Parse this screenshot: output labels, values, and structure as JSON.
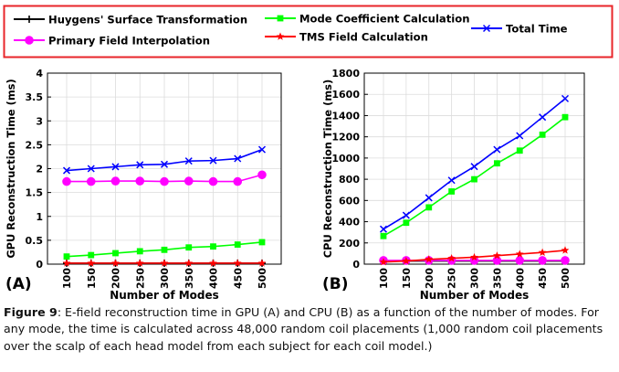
{
  "legend": {
    "entries": [
      {
        "label": "Huygens' Surface Transformation",
        "color": "#000000",
        "marker": "plus"
      },
      {
        "label": "Primary Field Interpolation",
        "color": "#ff00ff",
        "marker": "circle"
      },
      {
        "label": "Mode Coefficient Calculation",
        "color": "#00ff00",
        "marker": "square"
      },
      {
        "label": "TMS Field Calculation",
        "color": "#ff0000",
        "marker": "star"
      },
      {
        "label": "Total Time",
        "color": "#0000ff",
        "marker": "cross"
      }
    ],
    "border_color": "#e8262a",
    "placement": "top"
  },
  "chart_data": [
    {
      "type": "line",
      "panel_label": "(A)",
      "xlabel": "Number of Modes",
      "ylabel": "GPU Reconstruction Time (ms)",
      "categories": [
        "100",
        "150",
        "200",
        "250",
        "300",
        "350",
        "400",
        "450",
        "500"
      ],
      "ylim": [
        0,
        4
      ],
      "yticks": [
        "0",
        "0.5",
        "1",
        "1.5",
        "2",
        "2.5",
        "3",
        "3.5",
        "4"
      ],
      "grid": true,
      "series": [
        {
          "name": "Huygens' Surface Transformation",
          "values": [
            0.02,
            0.02,
            0.02,
            0.02,
            0.02,
            0.02,
            0.02,
            0.02,
            0.02
          ]
        },
        {
          "name": "Primary Field Interpolation",
          "values": [
            1.73,
            1.73,
            1.74,
            1.74,
            1.73,
            1.74,
            1.73,
            1.73,
            1.87
          ]
        },
        {
          "name": "Mode Coefficient Calculation",
          "values": [
            0.16,
            0.19,
            0.23,
            0.27,
            0.3,
            0.35,
            0.37,
            0.41,
            0.46
          ]
        },
        {
          "name": "TMS Field Calculation",
          "values": [
            0.02,
            0.02,
            0.02,
            0.02,
            0.02,
            0.02,
            0.02,
            0.02,
            0.02
          ]
        },
        {
          "name": "Total Time",
          "values": [
            1.96,
            2.0,
            2.04,
            2.08,
            2.09,
            2.16,
            2.17,
            2.21,
            2.4
          ]
        }
      ]
    },
    {
      "type": "line",
      "panel_label": "(B)",
      "xlabel": "Number of Modes",
      "ylabel": "CPU Reconstruction Time (ms)",
      "categories": [
        "100",
        "150",
        "200",
        "250",
        "300",
        "350",
        "400",
        "450",
        "500"
      ],
      "ylim": [
        0,
        1800
      ],
      "yticks": [
        "0",
        "200",
        "400",
        "600",
        "800",
        "1000",
        "1200",
        "1400",
        "1600",
        "1800"
      ],
      "grid": true,
      "series": [
        {
          "name": "Huygens' Surface Transformation",
          "values": [
            30,
            30,
            30,
            30,
            30,
            30,
            30,
            30,
            30
          ]
        },
        {
          "name": "Primary Field Interpolation",
          "values": [
            35,
            35,
            35,
            35,
            35,
            35,
            35,
            35,
            35
          ]
        },
        {
          "name": "Mode Coefficient Calculation",
          "values": [
            265,
            390,
            535,
            685,
            800,
            950,
            1070,
            1220,
            1385
          ]
        },
        {
          "name": "TMS Field Calculation",
          "values": [
            20,
            30,
            45,
            55,
            65,
            80,
            95,
            110,
            130
          ]
        },
        {
          "name": "Total Time",
          "values": [
            330,
            460,
            625,
            790,
            920,
            1080,
            1210,
            1385,
            1560
          ]
        }
      ]
    }
  ],
  "caption": {
    "figure_label": "Figure 9",
    "text": ": E-field reconstruction time in GPU (A) and CPU (B) as a function of the number of modes. For any mode, the time is calculated across 48,000 random coil placements (1,000 random coil placements over the scalp of each head model from each subject for each coil model.)"
  }
}
